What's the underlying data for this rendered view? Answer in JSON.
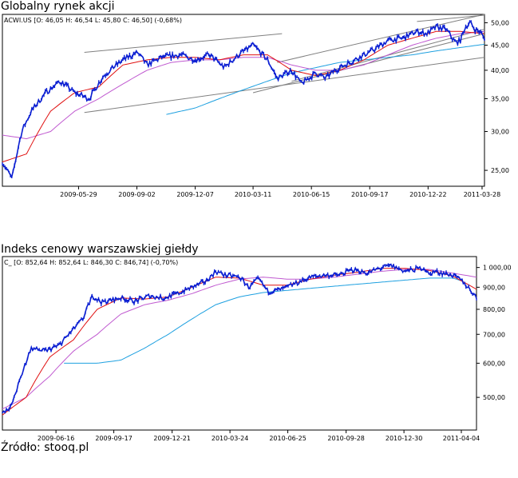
{
  "headings": {
    "chart1": "Globalny rynek akcji",
    "chart2": "Indeks cenowy warszawskiej giełdy",
    "source": "Źródło: stooq.pl"
  },
  "colors": {
    "price": "#0a1ed2",
    "ma_short": "#e01010",
    "ma_mid": "#c05ad0",
    "ma_long": "#1ea0e0",
    "trendline": "#808080",
    "frame": "#000000"
  },
  "chart_data": [
    {
      "type": "line",
      "title": "Globalny rynek akcji",
      "legend": "ACWI.US [O: 46,05  H: 46,54  L: 45,80  C: 46,50] (-0,68%)",
      "y_scale": "log",
      "ylim": [
        23.2,
        52
      ],
      "y_ticks": [
        25,
        30,
        35,
        40,
        45,
        50
      ],
      "y_tick_labels": [
        "25,00",
        "30,00",
        "35,00",
        "40,00",
        "45,00",
        "50,00"
      ],
      "x_tick_labels": [
        "2009-05-29",
        "2009-09-02",
        "2009-12-07",
        "2010-03-11",
        "2010-06-15",
        "2010-09-17",
        "2010-12-22",
        "2011-03-28"
      ],
      "x_tick_positions": [
        0.158,
        0.279,
        0.4,
        0.52,
        0.641,
        0.762,
        0.883,
        0.995
      ],
      "series": [
        {
          "role": "price",
          "x": [
            0,
            0.02,
            0.04,
            0.06,
            0.09,
            0.12,
            0.15,
            0.18,
            0.21,
            0.25,
            0.28,
            0.3,
            0.33,
            0.37,
            0.4,
            0.43,
            0.46,
            0.49,
            0.52,
            0.55,
            0.57,
            0.6,
            0.62,
            0.65,
            0.67,
            0.69,
            0.71,
            0.74,
            0.77,
            0.8,
            0.83,
            0.86,
            0.88,
            0.9,
            0.92,
            0.94,
            0.95,
            0.96,
            0.97,
            0.98,
            0.99,
            1.0
          ],
          "values": [
            26,
            24,
            30,
            33,
            36,
            38,
            36,
            35,
            39,
            42,
            43.5,
            41,
            42.5,
            43,
            42,
            43,
            40.5,
            43,
            45,
            42,
            38.5,
            40,
            37.5,
            39.5,
            38.5,
            40,
            41,
            42.5,
            44,
            46,
            46.5,
            48,
            47.5,
            49,
            48.5,
            45.5,
            46,
            49,
            50,
            48.5,
            48,
            46.5
          ]
        },
        {
          "role": "ma_short",
          "x": [
            0,
            0.05,
            0.1,
            0.15,
            0.2,
            0.25,
            0.3,
            0.35,
            0.4,
            0.45,
            0.5,
            0.55,
            0.6,
            0.65,
            0.7,
            0.75,
            0.8,
            0.85,
            0.9,
            0.95,
            1.0
          ],
          "values": [
            26,
            27,
            33,
            36,
            37,
            41,
            42,
            42.5,
            42.5,
            42,
            43,
            43,
            40,
            39,
            40,
            42,
            45,
            46.5,
            48,
            48,
            47.5
          ]
        },
        {
          "role": "ma_mid",
          "x": [
            0,
            0.05,
            0.1,
            0.15,
            0.2,
            0.25,
            0.3,
            0.35,
            0.4,
            0.45,
            0.5,
            0.55,
            0.6,
            0.65,
            0.7,
            0.75,
            0.8,
            0.85,
            0.9,
            0.95,
            1.0
          ],
          "values": [
            29.5,
            29,
            30,
            33,
            35,
            37.5,
            40,
            41.5,
            42,
            42,
            42.5,
            42.5,
            41,
            40,
            40,
            41,
            43,
            45,
            46.5,
            47.5,
            48
          ]
        },
        {
          "role": "ma_long",
          "x": [
            0.34,
            0.4,
            0.45,
            0.5,
            0.55,
            0.6,
            0.65,
            0.7,
            0.75,
            0.8,
            0.85,
            0.9,
            0.95,
            1.0
          ],
          "values": [
            32.5,
            33.5,
            35,
            36.5,
            38,
            39.5,
            40.5,
            41.5,
            42,
            42.5,
            43,
            43.8,
            44.5,
            45.2
          ]
        }
      ],
      "trendlines": [
        {
          "x": [
            0.17,
            1.0
          ],
          "values": [
            32.8,
            42.5
          ]
        },
        {
          "x": [
            0.17,
            0.58
          ],
          "values": [
            43.5,
            47.5
          ]
        },
        {
          "x": [
            0.52,
            1.0
          ],
          "values": [
            36,
            47.5
          ]
        },
        {
          "x": [
            0.57,
            1.0
          ],
          "values": [
            41.5,
            52
          ]
        },
        {
          "x": [
            0.6,
            1.0
          ],
          "values": [
            38,
            48.5
          ]
        },
        {
          "x": [
            0.86,
            1.0
          ],
          "values": [
            50.3,
            51.8
          ]
        }
      ]
    },
    {
      "type": "line",
      "title": "Indeks cenowy warszawskiej giełdy",
      "legend": "C_ [O: 852,64  H: 852,64  L: 846,30  C: 846,74] (-0,70%)",
      "y_scale": "log",
      "ylim": [
        420,
        1060
      ],
      "y_ticks": [
        500,
        600,
        700,
        800,
        900,
        1000
      ],
      "y_tick_labels": [
        "500,00",
        "600,00",
        "700,00",
        "800,00",
        "900,00",
        "1 000,00"
      ],
      "x_tick_labels": [
        "2009-06-16",
        "2009-09-17",
        "2009-12-21",
        "2010-03-24",
        "2010-06-25",
        "2010-09-28",
        "2010-12-30",
        "2011-04-04"
      ],
      "x_tick_positions": [
        0.113,
        0.235,
        0.358,
        0.48,
        0.602,
        0.725,
        0.847,
        0.968
      ],
      "series": [
        {
          "role": "price",
          "x": [
            0,
            0.02,
            0.04,
            0.06,
            0.09,
            0.12,
            0.15,
            0.17,
            0.19,
            0.21,
            0.23,
            0.25,
            0.28,
            0.31,
            0.34,
            0.37,
            0.4,
            0.43,
            0.45,
            0.47,
            0.5,
            0.52,
            0.54,
            0.56,
            0.59,
            0.62,
            0.65,
            0.68,
            0.71,
            0.74,
            0.77,
            0.8,
            0.82,
            0.85,
            0.87,
            0.89,
            0.9,
            0.91,
            0.93,
            0.95,
            0.97,
            0.99,
            1.0
          ],
          "values": [
            460,
            480,
            560,
            650,
            640,
            660,
            720,
            760,
            860,
            830,
            840,
            850,
            835,
            860,
            850,
            870,
            900,
            930,
            980,
            960,
            950,
            900,
            940,
            880,
            890,
            920,
            950,
            960,
            960,
            990,
            970,
            1000,
            1010,
            980,
            990,
            1000,
            960,
            980,
            970,
            960,
            930,
            880,
            850
          ]
        },
        {
          "role": "ma_short",
          "x": [
            0,
            0.05,
            0.1,
            0.15,
            0.2,
            0.25,
            0.3,
            0.35,
            0.4,
            0.45,
            0.5,
            0.55,
            0.6,
            0.65,
            0.7,
            0.75,
            0.8,
            0.85,
            0.9,
            0.95,
            1.0
          ],
          "values": [
            455,
            500,
            620,
            680,
            800,
            850,
            845,
            855,
            900,
            950,
            945,
            910,
            910,
            940,
            960,
            975,
            995,
            995,
            985,
            955,
            890
          ]
        },
        {
          "role": "ma_mid",
          "x": [
            0,
            0.05,
            0.1,
            0.15,
            0.2,
            0.25,
            0.3,
            0.35,
            0.4,
            0.45,
            0.5,
            0.55,
            0.6,
            0.65,
            0.7,
            0.75,
            0.8,
            0.85,
            0.9,
            0.95,
            1.0
          ],
          "values": [
            470,
            500,
            560,
            640,
            700,
            780,
            820,
            840,
            870,
            910,
            940,
            950,
            940,
            940,
            950,
            965,
            980,
            990,
            990,
            970,
            950
          ]
        },
        {
          "role": "ma_long",
          "x": [
            0.13,
            0.2,
            0.25,
            0.3,
            0.35,
            0.4,
            0.45,
            0.5,
            0.55,
            0.6,
            0.65,
            0.7,
            0.75,
            0.8,
            0.85,
            0.9,
            0.95,
            0.97
          ],
          "values": [
            600,
            600,
            610,
            650,
            700,
            760,
            820,
            855,
            875,
            885,
            895,
            905,
            915,
            925,
            935,
            945,
            945,
            930
          ]
        }
      ]
    }
  ]
}
